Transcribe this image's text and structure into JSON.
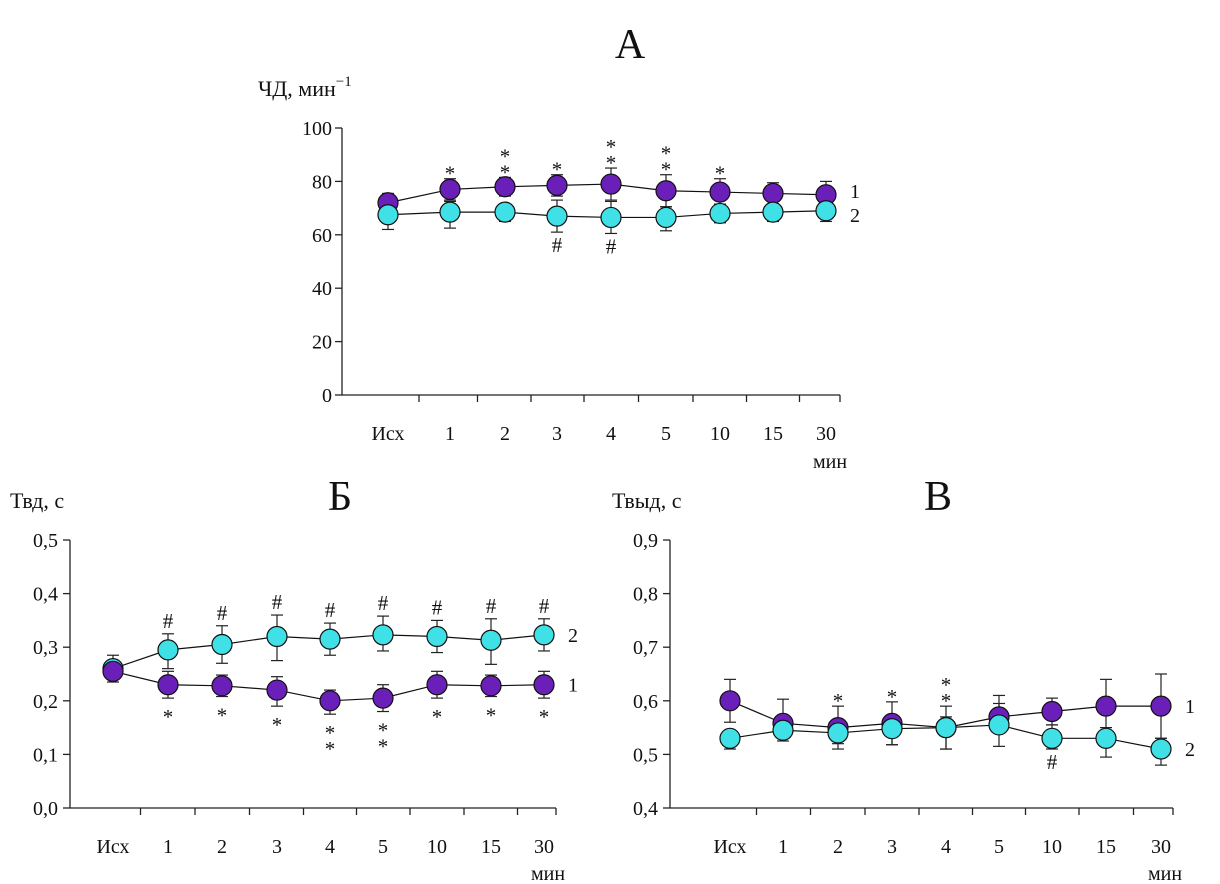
{
  "chart_data": [
    {
      "type": "line",
      "title": "А",
      "ylabel": "ЧД, мин",
      "ylabel_sup": "−1",
      "xunit": "мин",
      "categories": [
        "Исх",
        "1",
        "2",
        "3",
        "4",
        "5",
        "10",
        "15",
        "30"
      ],
      "ylim": [
        0,
        100
      ],
      "yticks": [
        0,
        20,
        40,
        60,
        80,
        100
      ],
      "ytick_labels": [
        "0",
        "20",
        "40",
        "60",
        "80",
        "100"
      ],
      "grid": false,
      "series": [
        {
          "name": "1",
          "color": "#6a1fb8",
          "values": [
            72,
            77,
            78,
            78.5,
            79,
            76.5,
            76,
            75.5,
            75
          ],
          "err_up": [
            3.5,
            4,
            3.5,
            4,
            6,
            6,
            5,
            4,
            5
          ],
          "err_down": [
            3.5,
            4,
            3.5,
            4,
            6,
            6,
            5,
            4,
            5
          ],
          "markers_above": [
            "",
            "*",
            "**",
            "*",
            "**",
            "**",
            "*",
            "",
            ""
          ],
          "markers_below": [
            "",
            "",
            "",
            "",
            "",
            "",
            "",
            "",
            ""
          ]
        },
        {
          "name": "2",
          "color": "#3fe0e6",
          "values": [
            67.5,
            68.5,
            68.5,
            67,
            66.5,
            66.5,
            68,
            68.5,
            69
          ],
          "err_up": [
            4,
            4,
            3,
            6,
            6,
            4,
            3.5,
            3,
            4
          ],
          "err_down": [
            5.5,
            6,
            3.5,
            6,
            6,
            5,
            3.5,
            3.5,
            4
          ],
          "markers_above": [
            "",
            "",
            "",
            "",
            "",
            "",
            "",
            "",
            ""
          ],
          "markers_below": [
            "",
            "",
            "",
            "#",
            "#",
            "",
            "",
            "",
            ""
          ]
        }
      ]
    },
    {
      "type": "line",
      "title": "Б",
      "ylabel": "Твд, с",
      "xunit": "мин",
      "categories": [
        "Исх",
        "1",
        "2",
        "3",
        "4",
        "5",
        "10",
        "15",
        "30"
      ],
      "ylim": [
        0,
        0.5
      ],
      "yticks": [
        0,
        0.1,
        0.2,
        0.3,
        0.4,
        0.5
      ],
      "ytick_labels": [
        "0,0",
        "0,1",
        "0,2",
        "0,3",
        "0,4",
        "0,5"
      ],
      "grid": false,
      "series": [
        {
          "name": "2",
          "color": "#3fe0e6",
          "values": [
            0.26,
            0.295,
            0.305,
            0.32,
            0.315,
            0.323,
            0.32,
            0.313,
            0.323
          ],
          "err_up": [
            0.025,
            0.03,
            0.035,
            0.04,
            0.03,
            0.035,
            0.03,
            0.04,
            0.03
          ],
          "err_down": [
            0.025,
            0.035,
            0.035,
            0.045,
            0.03,
            0.03,
            0.03,
            0.045,
            0.03
          ],
          "markers_above": [
            "",
            "#",
            "#",
            "#",
            "#",
            "#",
            "#",
            "#",
            "#"
          ],
          "markers_below": [
            "",
            "",
            "",
            "",
            "",
            "",
            "",
            "",
            ""
          ]
        },
        {
          "name": "1",
          "color": "#6a1fb8",
          "values": [
            0.255,
            0.23,
            0.228,
            0.22,
            0.2,
            0.205,
            0.23,
            0.228,
            0.23
          ],
          "err_up": [
            0.015,
            0.025,
            0.02,
            0.025,
            0.02,
            0.025,
            0.025,
            0.02,
            0.025
          ],
          "err_down": [
            0.015,
            0.025,
            0.02,
            0.03,
            0.025,
            0.025,
            0.025,
            0.02,
            0.025
          ],
          "markers_above": [
            "",
            "",
            "",
            "",
            "",
            "",
            "",
            "",
            ""
          ],
          "markers_below": [
            "",
            "*",
            "*",
            "*",
            "**",
            "**",
            "*",
            "*",
            "*"
          ]
        }
      ]
    },
    {
      "type": "line",
      "title": "В",
      "ylabel": "Твыд, с",
      "xunit": "мин",
      "categories": [
        "Исх",
        "1",
        "2",
        "3",
        "4",
        "5",
        "10",
        "15",
        "30"
      ],
      "ylim": [
        0.4,
        0.9
      ],
      "yticks": [
        0.4,
        0.5,
        0.6,
        0.7,
        0.8,
        0.9
      ],
      "ytick_labels": [
        "0,4",
        "0,5",
        "0,6",
        "0,7",
        "0,8",
        "0,9"
      ],
      "grid": false,
      "series": [
        {
          "name": "1",
          "color": "#6a1fb8",
          "values": [
            0.6,
            0.558,
            0.55,
            0.558,
            0.55,
            0.57,
            0.58,
            0.59,
            0.59
          ],
          "err_up": [
            0.04,
            0.045,
            0.04,
            0.04,
            0.04,
            0.04,
            0.025,
            0.05,
            0.06
          ],
          "err_down": [
            0.04,
            0.015,
            0.03,
            0.04,
            0.04,
            0.03,
            0.025,
            0.05,
            0.06
          ],
          "markers_above": [
            "",
            "",
            "*",
            "*",
            "**",
            "",
            "",
            "",
            ""
          ],
          "markers_below": [
            "",
            "",
            "",
            "",
            "",
            "",
            "",
            "",
            ""
          ]
        },
        {
          "name": "2",
          "color": "#3fe0e6",
          "values": [
            0.53,
            0.545,
            0.54,
            0.548,
            0.55,
            0.555,
            0.53,
            0.53,
            0.51
          ],
          "err_up": [
            0.01,
            0.02,
            0.02,
            0.02,
            0.02,
            0.04,
            0.025,
            0.02,
            0.02
          ],
          "err_down": [
            0.02,
            0.02,
            0.03,
            0.03,
            0.04,
            0.04,
            0.02,
            0.035,
            0.03
          ],
          "markers_above": [
            "",
            "",
            "",
            "",
            "",
            "",
            "",
            "",
            ""
          ],
          "markers_below": [
            "",
            "",
            "",
            "",
            "",
            "",
            "#",
            "",
            ""
          ]
        }
      ]
    }
  ]
}
